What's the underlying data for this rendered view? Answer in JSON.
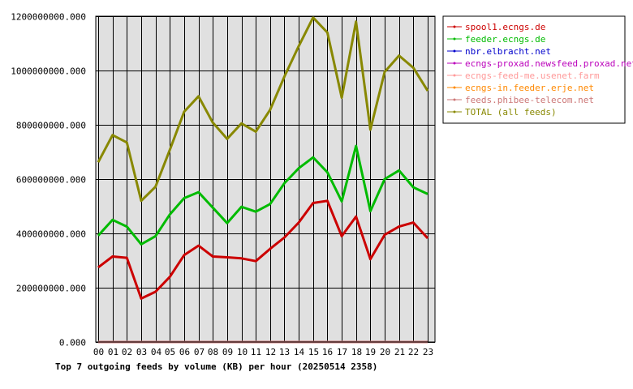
{
  "chart_data": {
    "type": "line",
    "title": "Top 7 outgoing feeds by volume (KB) per hour (20250514 2358)",
    "xlabel": "",
    "ylabel": "",
    "categories": [
      "00",
      "01",
      "02",
      "03",
      "04",
      "05",
      "06",
      "07",
      "08",
      "09",
      "10",
      "11",
      "12",
      "13",
      "14",
      "15",
      "16",
      "17",
      "18",
      "19",
      "20",
      "21",
      "22",
      "23"
    ],
    "ylim": [
      0,
      1200000000
    ],
    "yticks": [
      {
        "value": 0,
        "label": "0.000"
      },
      {
        "value": 200000000,
        "label": "200000000.000"
      },
      {
        "value": 400000000,
        "label": "400000000.000"
      },
      {
        "value": 600000000,
        "label": "600000000.000"
      },
      {
        "value": 800000000,
        "label": "800000000.000"
      },
      {
        "value": 1000000000,
        "label": "1000000000.000"
      },
      {
        "value": 1200000000,
        "label": "1200000000.000"
      }
    ],
    "grid": true,
    "legend_position": "right",
    "series": [
      {
        "name": "spool1.ecngs.de",
        "color": "#cc0000",
        "values": [
          275000000,
          315000000,
          310000000,
          160000000,
          185000000,
          240000000,
          320000000,
          355000000,
          315000000,
          312000000,
          308000000,
          298000000,
          343000000,
          385000000,
          440000000,
          512000000,
          520000000,
          390000000,
          462000000,
          305000000,
          395000000,
          425000000,
          440000000,
          382000000
        ]
      },
      {
        "name": "feeder.ecngs.de",
        "color": "#00bb00",
        "values": [
          392000000,
          450000000,
          425000000,
          360000000,
          390000000,
          470000000,
          530000000,
          552000000,
          495000000,
          438000000,
          498000000,
          480000000,
          508000000,
          585000000,
          640000000,
          680000000,
          625000000,
          518000000,
          722000000,
          482000000,
          600000000,
          632000000,
          570000000,
          545000000
        ]
      },
      {
        "name": "nbr.elbracht.net",
        "color": "#0000cc",
        "values": [
          0,
          0,
          0,
          0,
          0,
          0,
          0,
          0,
          0,
          0,
          0,
          0,
          0,
          0,
          0,
          0,
          0,
          0,
          0,
          0,
          0,
          0,
          0,
          0
        ]
      },
      {
        "name": "ecngs-proxad.newsfeed.proxad.net",
        "color": "#bb00bb",
        "values": [
          0,
          0,
          0,
          0,
          0,
          0,
          0,
          0,
          0,
          0,
          0,
          0,
          0,
          0,
          0,
          0,
          0,
          0,
          0,
          0,
          0,
          0,
          0,
          0
        ]
      },
      {
        "name": "ecngs-feed-me.usenet.farm",
        "color": "#ff9999",
        "values": [
          0,
          0,
          0,
          0,
          0,
          0,
          0,
          0,
          0,
          0,
          0,
          0,
          0,
          0,
          0,
          0,
          0,
          0,
          0,
          0,
          0,
          0,
          0,
          0
        ]
      },
      {
        "name": "ecngs-in.feeder.erje.net",
        "color": "#ff8800",
        "values": [
          0,
          0,
          0,
          0,
          0,
          0,
          0,
          0,
          0,
          0,
          0,
          0,
          0,
          0,
          0,
          0,
          0,
          0,
          0,
          0,
          0,
          0,
          0,
          0
        ]
      },
      {
        "name": "feeds.phibee-telecom.net",
        "color": "#cc7777",
        "values": [
          0,
          0,
          0,
          0,
          0,
          0,
          0,
          0,
          0,
          0,
          0,
          0,
          0,
          0,
          0,
          0,
          0,
          0,
          0,
          0,
          0,
          0,
          0,
          0
        ]
      },
      {
        "name": "TOTAL (all feeds)",
        "color": "#888800",
        "values": [
          662000000,
          762000000,
          735000000,
          520000000,
          572000000,
          708000000,
          848000000,
          905000000,
          808000000,
          748000000,
          805000000,
          775000000,
          855000000,
          978000000,
          1090000000,
          1195000000,
          1140000000,
          900000000,
          1180000000,
          782000000,
          995000000,
          1055000000,
          1010000000,
          925000000
        ]
      }
    ]
  }
}
